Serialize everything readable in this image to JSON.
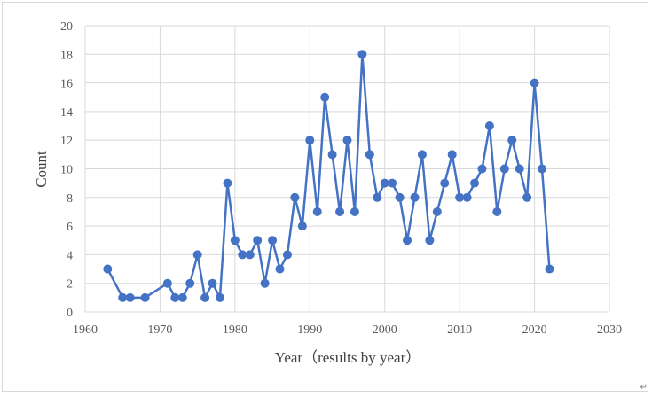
{
  "chart_data": {
    "type": "line",
    "title": "",
    "xlabel": "Year（results by year）",
    "ylabel": "Count",
    "xlim": [
      1960,
      2030
    ],
    "ylim": [
      0,
      20
    ],
    "x_ticks": [
      "1960",
      "1970",
      "1980",
      "1990",
      "2000",
      "2010",
      "2020",
      "2030"
    ],
    "y_ticks": [
      "0",
      "2",
      "4",
      "6",
      "8",
      "10",
      "12",
      "14",
      "16",
      "18",
      "20"
    ],
    "grid": true,
    "legend": "none",
    "series": [
      {
        "color": "#4472c4",
        "marker": "circle",
        "x": [
          1963,
          1965,
          1966,
          1968,
          1971,
          1972,
          1973,
          1974,
          1975,
          1976,
          1977,
          1978,
          1979,
          1980,
          1981,
          1982,
          1983,
          1984,
          1985,
          1986,
          1987,
          1988,
          1989,
          1990,
          1991,
          1992,
          1993,
          1994,
          1995,
          1996,
          1997,
          1998,
          1999,
          2000,
          2001,
          2002,
          2003,
          2004,
          2005,
          2006,
          2007,
          2008,
          2009,
          2010,
          2011,
          2012,
          2013,
          2014,
          2015,
          2016,
          2017,
          2018,
          2019,
          2020,
          2021,
          2022
        ],
        "y": [
          3,
          1,
          1,
          1,
          2,
          1,
          1,
          2,
          4,
          1,
          2,
          1,
          9,
          5,
          4,
          4,
          5,
          2,
          5,
          3,
          4,
          8,
          6,
          12,
          7,
          15,
          11,
          7,
          12,
          7,
          18,
          11,
          8,
          9,
          9,
          8,
          5,
          8,
          11,
          5,
          7,
          9,
          11,
          8,
          8,
          9,
          10,
          13,
          7,
          10,
          12,
          10,
          8,
          16,
          10,
          3
        ]
      }
    ]
  },
  "colors": {
    "grid": "#d9d9d9",
    "series": "#4472c4"
  },
  "corner_mark": "↵"
}
